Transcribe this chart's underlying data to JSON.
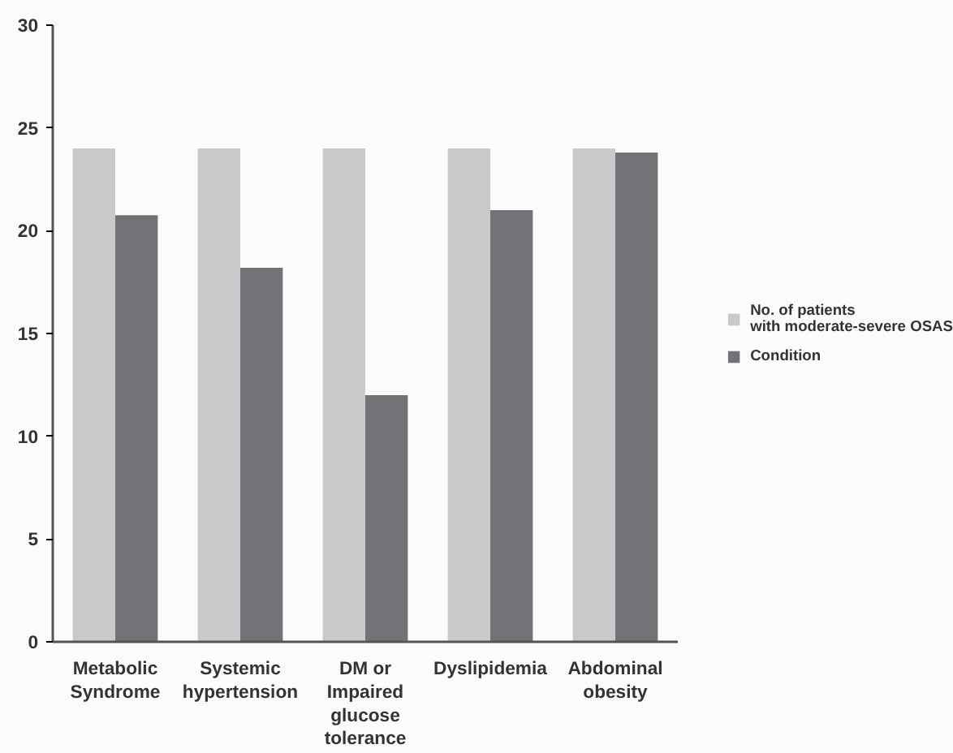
{
  "chart_data": {
    "type": "bar",
    "categories": [
      "Metabolic Syndrome",
      "Systemic hypertension",
      "DM or Impaired glucose tolerance",
      "Dyslipidemia",
      "Abdominal obesity"
    ],
    "series": [
      {
        "name": "No. of patients\nwith moderate-severe OSAS",
        "color": "#c8c9cb",
        "values": [
          24,
          24,
          24,
          24,
          24
        ]
      },
      {
        "name": "Condition",
        "color": "#727376",
        "values": [
          20.75,
          18.2,
          12.0,
          21.0,
          23.8
        ]
      }
    ],
    "ylim": [
      0,
      30
    ],
    "yticks": [
      0,
      5,
      10,
      15,
      20,
      25,
      30
    ],
    "grid": false,
    "legend": "right"
  }
}
